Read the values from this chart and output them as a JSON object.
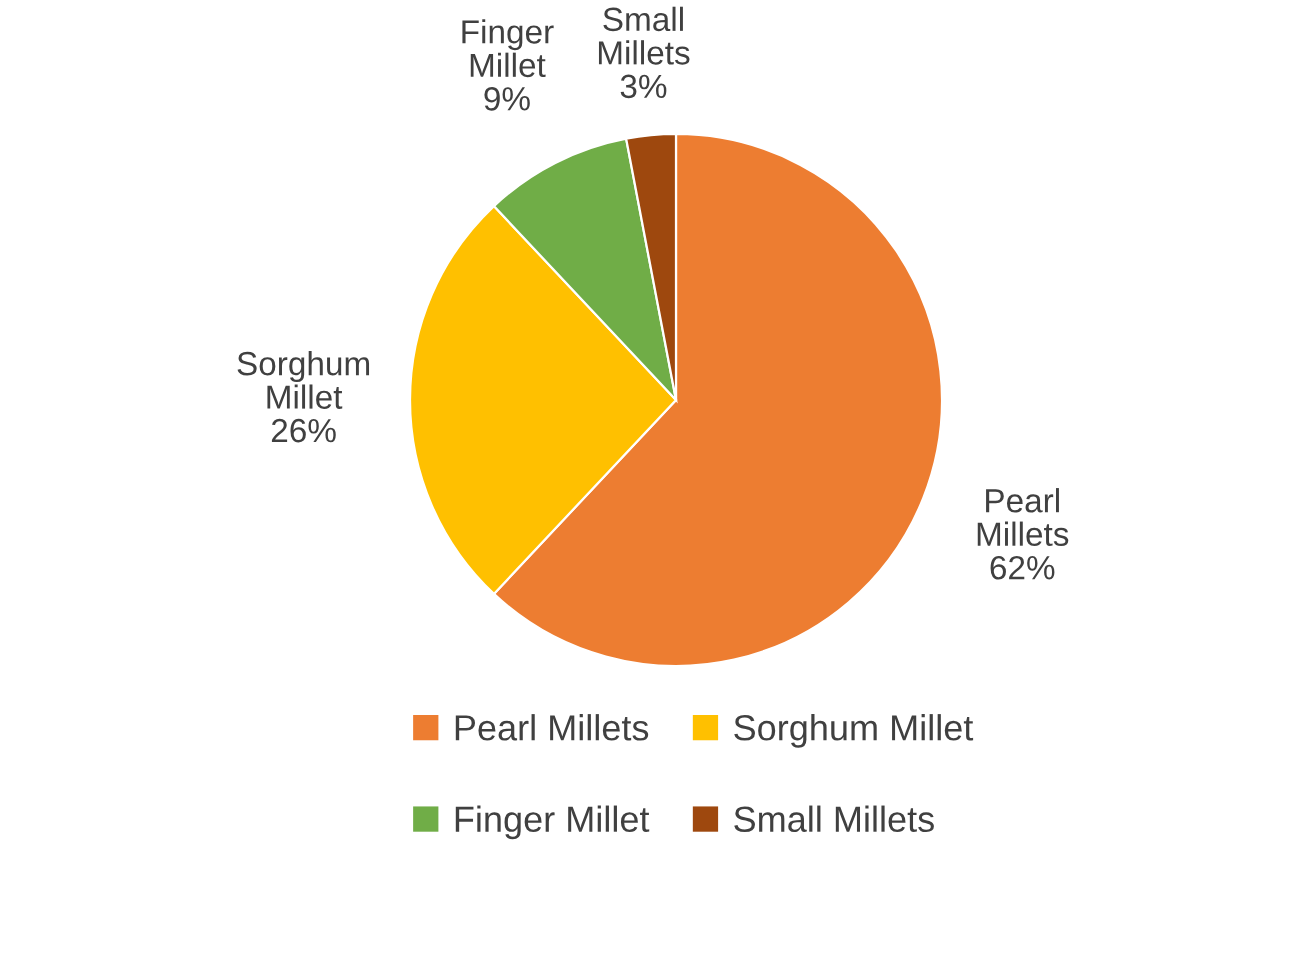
{
  "chart_data": {
    "type": "pie",
    "categories": [
      "Pearl Millets",
      "Sorghum Millet",
      "Finger Millet",
      "Small Millets"
    ],
    "values": [
      62,
      26,
      9,
      3
    ],
    "colors": [
      "#ed7d31",
      "#ffc000",
      "#70ad47",
      "#9e480e"
    ],
    "value_labels": [
      "62%",
      "26%",
      "9%",
      "3%"
    ],
    "legend": "bottom"
  }
}
